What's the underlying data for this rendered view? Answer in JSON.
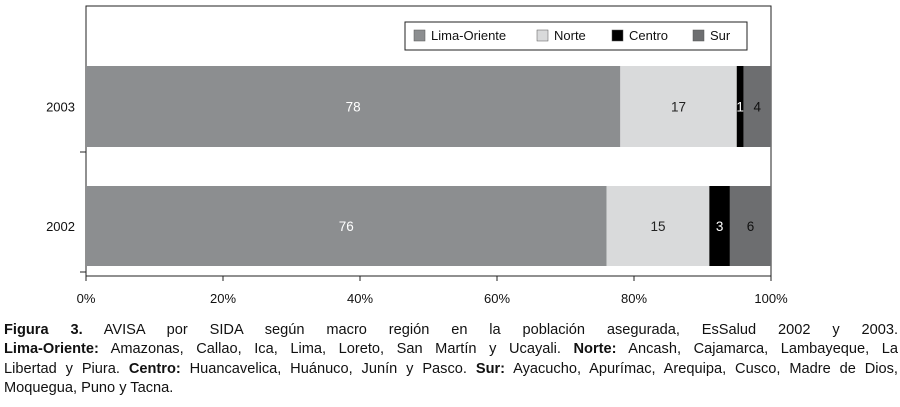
{
  "chart_data": {
    "type": "bar",
    "orientation": "horizontal",
    "stacked": true,
    "categories": [
      "2003",
      "2002"
    ],
    "series": [
      {
        "name": "Lima-Oriente",
        "color": "#8c8e90",
        "values": [
          78,
          76
        ]
      },
      {
        "name": "Norte",
        "color": "#d9dadb",
        "values": [
          17,
          15
        ]
      },
      {
        "name": "Centro",
        "color": "#000000",
        "values": [
          1,
          3
        ]
      },
      {
        "name": "Sur",
        "color": "#6d6e70",
        "values": [
          4,
          6
        ]
      }
    ],
    "xlim": [
      0,
      100
    ],
    "x_ticks": [
      "0%",
      "20%",
      "40%",
      "60%",
      "80%",
      "100%"
    ],
    "grid": false,
    "legend_position": "top-right"
  },
  "caption": {
    "figure_label": "Figura 3.",
    "figure_title": "AVISA por SIDA según macro región en la población asegurada, EsSalud 2002 y 2003.",
    "lines": [
      [
        {
          "bold": true,
          "text": "Lima-Oriente:"
        },
        {
          "bold": false,
          "text": "Amazonas, Callao, Ica, Lima, Loreto, San Martín y Ucayali."
        },
        {
          "bold": true,
          "text": "Norte:"
        },
        {
          "bold": false,
          "text": "Ancash, Cajamarca, Lambayeque, La"
        }
      ],
      [
        {
          "bold": false,
          "text": "Libertad y Piura."
        },
        {
          "bold": true,
          "text": "Centro:"
        },
        {
          "bold": false,
          "text": "Huancavelica, Huánuco, Junín y Pasco."
        },
        {
          "bold": true,
          "text": "Sur:"
        },
        {
          "bold": false,
          "text": "Ayacucho, Apurímac, Arequipa, Cusco, Madre de Dios,"
        }
      ],
      [
        {
          "bold": false,
          "text": "Moquegua, Puno y Tacna."
        }
      ]
    ]
  }
}
